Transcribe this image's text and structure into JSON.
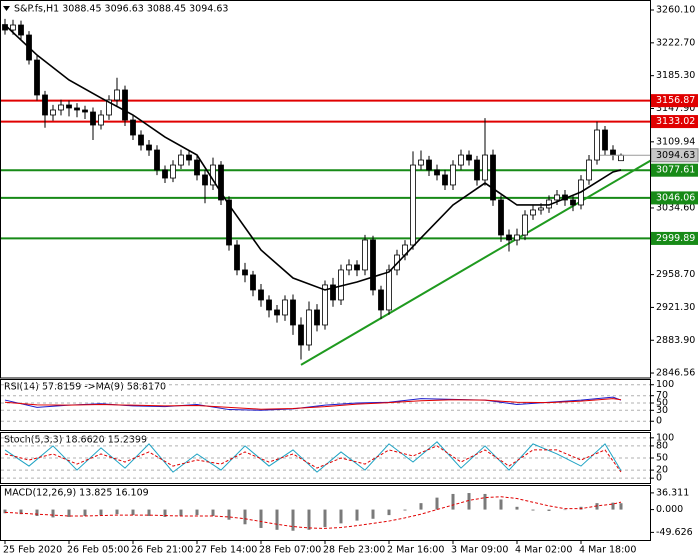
{
  "chart_data": [
    {
      "type": "candlestick",
      "title": "S&P.fs,H1  3088.45 3096.63 3088.45 3094.63",
      "categories": [
        "25 Feb 2020",
        null,
        null,
        null,
        null,
        null,
        null,
        null,
        "26 Feb 05:00",
        null,
        null,
        null,
        null,
        null,
        null,
        null,
        "26 Feb 21:00",
        null,
        null,
        null,
        null,
        null,
        null,
        null,
        "27 Feb 14:00",
        null,
        null,
        null,
        null,
        null,
        null,
        null,
        "28 Feb 07:00",
        null,
        null,
        null,
        null,
        null,
        null,
        null,
        "28 Feb 23:00",
        null,
        null,
        null,
        null,
        null,
        null,
        null,
        "2 Mar 16:00",
        null,
        null,
        null,
        null,
        null,
        null,
        null,
        "3 Mar 09:00",
        null,
        null,
        null,
        null,
        null,
        null,
        null,
        "4 Mar 02:00",
        null,
        null,
        null,
        null,
        null,
        null,
        null,
        "4 Mar 18:00",
        null,
        null,
        null,
        null,
        null
      ],
      "open": [
        3243.5,
        3237.3,
        3243.0,
        3231.6,
        3203.1,
        3163.3,
        3140.5,
        3146.2,
        3151.9,
        3148.5,
        3146.2,
        3143.9,
        3129.1,
        3140.5,
        3157.6,
        3169.0,
        3134.8,
        3117.7,
        3106.3,
        3100.6,
        3077.9,
        3068.7,
        3083.5,
        3094.9,
        3089.2,
        3072.2,
        3060.8,
        3083.5,
        3043.7,
        2992.4,
        2964.0,
        2958.3,
        2941.2,
        2929.8,
        2918.4,
        2912.7,
        2929.8,
        2901.3,
        2878.5,
        2918.4,
        2901.3,
        2946.9,
        2929.8,
        2964.0,
        2969.7,
        2964.0,
        2998.1,
        2941.2,
        2918.4,
        2964.0,
        2981.0,
        2992.4,
        3083.5,
        3089.2,
        3077.9,
        3072.2,
        3060.8,
        3083.5,
        3094.9,
        3089.2,
        3066.5,
        3094.9,
        3043.7,
        3003.8,
        2998.1,
        3003.8,
        3026.6,
        3032.3,
        3034.6,
        3043.7,
        3049.4,
        3043.7,
        3038.0,
        3066.5,
        3089.2,
        3123.4,
        3100.6,
        3088.45
      ],
      "high": [
        3250,
        3249,
        3248,
        3236,
        3208,
        3168,
        3152,
        3158,
        3157,
        3154,
        3151,
        3149,
        3146,
        3163,
        3183,
        3174,
        3140,
        3123,
        3112,
        3106,
        3083,
        3089,
        3101,
        3100,
        3094,
        3078,
        3092,
        3088,
        3048,
        2998,
        2972,
        2963,
        2948,
        2935,
        2924,
        2935,
        2936,
        2910,
        2928,
        2925,
        2952,
        2955,
        2970,
        2976,
        2975,
        3004,
        3003,
        2946,
        2970,
        2987,
        2998,
        3099,
        3100,
        3094,
        3084,
        3078,
        3089,
        3101,
        3100,
        3094,
        3137,
        3101,
        3049,
        3010,
        3011,
        3032,
        3038,
        3040,
        3049,
        3055,
        3055,
        3049,
        3072,
        3095,
        3133,
        3128,
        3106,
        3096.63
      ],
      "low": [
        3232,
        3232,
        3226,
        3198,
        3157,
        3126,
        3134,
        3140,
        3139,
        3138,
        3136,
        3112,
        3124,
        3135,
        3151,
        3128,
        3112,
        3100,
        3094,
        3072,
        3063,
        3064,
        3079,
        3083,
        3066,
        3040,
        3055,
        3038,
        2986,
        2958,
        2950,
        2934,
        2922,
        2910,
        2904,
        2906,
        2890,
        2862,
        2872,
        2894,
        2896,
        2922,
        2924,
        2958,
        2957,
        2958,
        2935,
        2908,
        2913,
        2958,
        2975,
        2987,
        3078,
        3071,
        3066,
        3055,
        3055,
        3078,
        3083,
        3060,
        3060,
        3037,
        2996,
        2985,
        2992,
        2998,
        3021,
        3027,
        3029,
        3038,
        3037,
        3031,
        3033,
        3061,
        3084,
        3095,
        3089,
        3088.45
      ],
      "close": [
        3237.3,
        3243.0,
        3231.6,
        3203.1,
        3163.3,
        3140.5,
        3146.2,
        3151.9,
        3148.5,
        3146.2,
        3143.9,
        3129.1,
        3140.5,
        3157.6,
        3169.0,
        3134.8,
        3117.7,
        3106.3,
        3100.6,
        3077.9,
        3068.7,
        3083.5,
        3094.9,
        3089.2,
        3072.2,
        3060.8,
        3083.5,
        3043.7,
        2992.4,
        2964.0,
        2958.3,
        2941.2,
        2929.8,
        2918.4,
        2912.7,
        2929.8,
        2901.3,
        2878.5,
        2918.4,
        2901.3,
        2946.9,
        2929.8,
        2964.0,
        2969.7,
        2964.0,
        2998.1,
        2941.2,
        2918.4,
        2964.0,
        2981.0,
        2992.4,
        3083.5,
        3089.2,
        3077.9,
        3072.2,
        3060.8,
        3083.5,
        3094.9,
        3089.2,
        3066.5,
        3094.9,
        3043.7,
        3003.8,
        2998.1,
        3003.8,
        3026.6,
        3032.3,
        3034.6,
        3043.7,
        3049.4,
        3043.7,
        3038.0,
        3066.5,
        3089.2,
        3123.4,
        3100.6,
        3094.9,
        3094.63
      ],
      "up_color": "#ffffff",
      "down_color": "#000000",
      "series": [
        {
          "color": "#000000",
          "x": [
            0,
            4,
            8,
            12,
            16,
            20,
            24,
            28,
            32,
            36,
            40,
            44,
            48,
            52,
            56,
            60,
            64,
            68,
            72,
            76,
            77
          ],
          "values": [
            3243.0,
            3208.8,
            3180.4,
            3159.9,
            3140.5,
            3115.4,
            3094.9,
            3038.0,
            2986.7,
            2954.8,
            2941.2,
            2950.3,
            2961.7,
            3000.4,
            3038.0,
            3063.0,
            3038.0,
            3038.0,
            3052.8,
            3075.6,
            3077.9
          ]
        }
      ],
      "levels": [
        {
          "value": 3156.87,
          "color": "#e00000"
        },
        {
          "value": 3133.02,
          "color": "#e00000"
        },
        {
          "value": 3077.61,
          "color": "#178a17"
        },
        {
          "value": 3046.06,
          "color": "#178a17"
        },
        {
          "value": 2999.89,
          "color": "#178a17"
        }
      ],
      "last_price": 3094.63,
      "trendline": {
        "color": "#1f9a1f",
        "x": [
          37,
          81.25
        ],
        "values": [
          2855.8,
          3091.5
        ]
      },
      "ylim": [
        2840.9,
        3271.5
      ],
      "yticks": [
        {
          "value": 3260.1,
          "label": "3260.10"
        },
        {
          "value": 3222.7,
          "label": "3222.70"
        },
        {
          "value": 3185.3,
          "label": "3185.30"
        },
        {
          "value": 3147.9,
          "label": "3147.90"
        },
        3109.94,
        {
          "value": 3034.6,
          "label": "3034.60"
        },
        {
          "value": 2958.7,
          "label": "2958.70"
        },
        {
          "value": 2921.3,
          "label": "2921.30"
        },
        {
          "value": 2883.9,
          "label": "2883.90"
        },
        2846.56
      ]
    },
    {
      "type": "line",
      "title": "RSI(14) 57.8159 ->MA(9) 58.8170",
      "x": [
        0,
        4,
        8,
        12,
        16,
        20,
        24,
        28,
        32,
        36,
        40,
        44,
        48,
        52,
        56,
        60,
        64,
        68,
        72,
        76,
        77
      ],
      "series": [
        {
          "color": "#1c1ccc",
          "dash": false,
          "values": [
            58,
            38,
            44,
            48,
            42,
            40,
            46,
            32,
            30,
            34,
            44,
            50,
            52,
            62,
            60,
            58,
            46,
            52,
            58,
            66,
            57.8159
          ]
        },
        {
          "color": "#e00000",
          "dash": false,
          "values": [
            52,
            45,
            44,
            46,
            44,
            42,
            43,
            38,
            33,
            35,
            40,
            47,
            51,
            56,
            59,
            58,
            52,
            51,
            55,
            62,
            58.817
          ]
        }
      ],
      "ylim": [
        -24,
        113
      ],
      "yticks": [
        100,
        70,
        50,
        30,
        0
      ],
      "grid": true
    },
    {
      "type": "line",
      "title": "Stoch(5,3,3) 18.6620 15.2399",
      "x": [
        0,
        3,
        6,
        9,
        12,
        15,
        18,
        21,
        24,
        27,
        30,
        33,
        36,
        39,
        42,
        45,
        48,
        51,
        54,
        57,
        60,
        63,
        66,
        69,
        72,
        75,
        77
      ],
      "series": [
        {
          "color": "#1fa3c4",
          "dash": false,
          "values": [
            70,
            30,
            80,
            20,
            75,
            25,
            85,
            15,
            60,
            20,
            80,
            30,
            70,
            15,
            65,
            20,
            85,
            40,
            90,
            25,
            80,
            20,
            85,
            60,
            30,
            85,
            18.662
          ]
        },
        {
          "color": "#e00000",
          "dash": true,
          "values": [
            60,
            45,
            60,
            35,
            60,
            40,
            65,
            30,
            45,
            35,
            65,
            40,
            60,
            25,
            50,
            35,
            70,
            55,
            80,
            40,
            70,
            30,
            70,
            70,
            45,
            70,
            15.2399
          ]
        }
      ],
      "ylim": [
        -12,
        112
      ],
      "yticks": [
        100,
        80,
        50,
        20,
        0
      ],
      "grid": true
    },
    {
      "type": "macd",
      "title": "MACD(12,26,9) 13.825 16.109",
      "x": [
        0,
        2,
        4,
        6,
        8,
        10,
        12,
        14,
        16,
        18,
        20,
        22,
        24,
        26,
        28,
        30,
        32,
        34,
        36,
        38,
        40,
        42,
        44,
        46,
        48,
        50,
        52,
        54,
        56,
        58,
        60,
        62,
        64,
        66,
        68,
        70,
        72,
        74,
        76,
        77
      ],
      "histogram": {
        "color": "#7a7a7a",
        "values": [
          -8,
          -10,
          -14,
          -17,
          -16,
          -14,
          -12,
          -10,
          -12,
          -14,
          -16,
          -14,
          -12,
          -14,
          -22,
          -32,
          -40,
          -44,
          -46,
          -44,
          -38,
          -30,
          -24,
          -20,
          -12,
          -2,
          14,
          26,
          34,
          36,
          34,
          22,
          6,
          -2,
          -3,
          -1,
          6,
          14,
          15,
          13.825
        ]
      },
      "signal": {
        "color": "#e00000",
        "dash": true,
        "values": [
          -6,
          -8,
          -10,
          -12,
          -14,
          -14,
          -13,
          -12,
          -12,
          -12,
          -13,
          -14,
          -14,
          -14,
          -16,
          -20,
          -26,
          -32,
          -37,
          -40,
          -41,
          -39,
          -35,
          -30,
          -25,
          -18,
          -10,
          0,
          10,
          20,
          26,
          28,
          24,
          16,
          8,
          2,
          2,
          8,
          12,
          16.109
        ]
      },
      "ylim": [
        -66.2,
        51.3
      ],
      "yticks": [
        36.311,
        {
          "value": 0,
          "label": "0.000"
        },
        -49.626
      ]
    }
  ]
}
